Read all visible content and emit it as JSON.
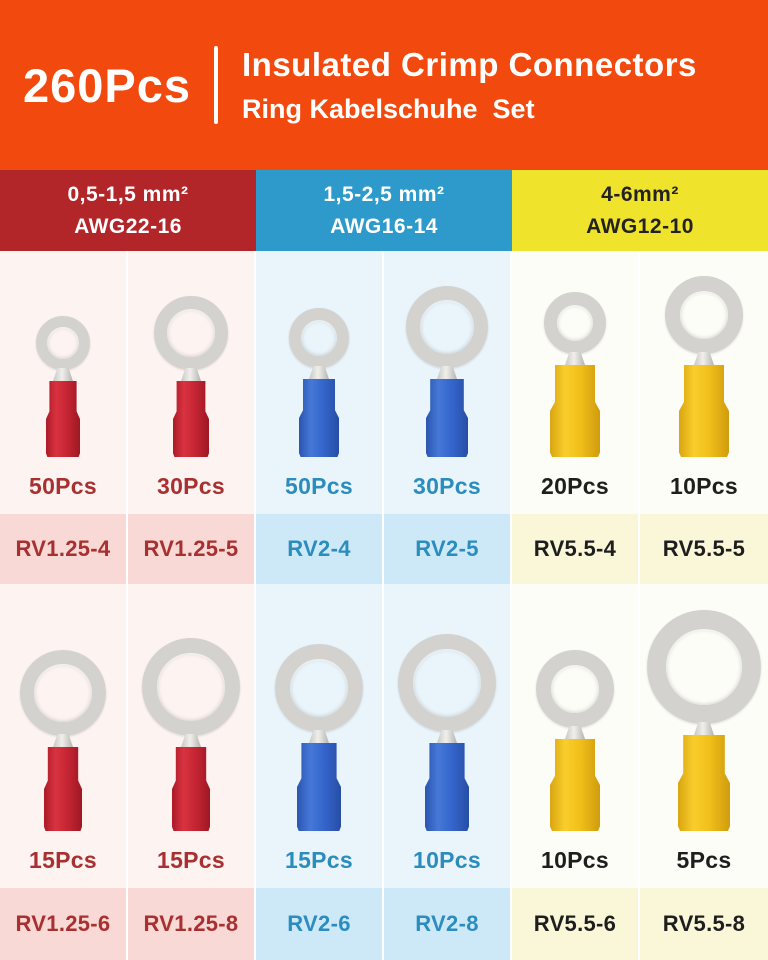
{
  "header": {
    "total": "260Pcs",
    "title": "Insulated Crimp Connectors",
    "subtitle": "Ring Kabelschuhe  Set"
  },
  "groups": [
    {
      "size_range": "0,5-1,5 mm²",
      "awg": "AWG22-16"
    },
    {
      "size_range": "1,5-2,5 mm²",
      "awg": "AWG16-14"
    },
    {
      "size_range": "4-6mm²",
      "awg": "AWG12-10"
    }
  ],
  "rows": [
    {
      "cells": [
        {
          "count": "50Pcs",
          "model": "RV1.25-4"
        },
        {
          "count": "30Pcs",
          "model": "RV1.25-5"
        },
        {
          "count": "50Pcs",
          "model": "RV2-4"
        },
        {
          "count": "30Pcs",
          "model": "RV2-5"
        },
        {
          "count": "20Pcs",
          "model": "RV5.5-4"
        },
        {
          "count": "10Pcs",
          "model": "RV5.5-5"
        }
      ]
    },
    {
      "cells": [
        {
          "count": "15Pcs",
          "model": "RV1.25-6"
        },
        {
          "count": "15Pcs",
          "model": "RV1.25-8"
        },
        {
          "count": "15Pcs",
          "model": "RV2-6"
        },
        {
          "count": "10Pcs",
          "model": "RV2-8"
        },
        {
          "count": "10Pcs",
          "model": "RV5.5-6"
        },
        {
          "count": "5Pcs",
          "model": "RV5.5-8"
        }
      ]
    }
  ],
  "colors": {
    "orange": "#F24A0E",
    "group-red": "#B22528",
    "group-blue": "#2E9ACB",
    "group-yellow": "#F0E32B",
    "cell-red-bg": "#FDF4F2",
    "cell-blue-bg": "#E9F5FB",
    "cell-yellow-bg": "#FDFDF7",
    "band-red": "#F8D9D5",
    "band-blue": "#CDE9F7",
    "band-yellow": "#FAF7D9",
    "text-red": "#A83030",
    "text-blue": "#2B8CBE",
    "text-dark": "#1E1E1E",
    "sleeve-red": "#C62634",
    "sleeve-blue": "#3566CC",
    "sleeve-yellow": "#F2BF1A",
    "metal": "#D3D2CE"
  }
}
